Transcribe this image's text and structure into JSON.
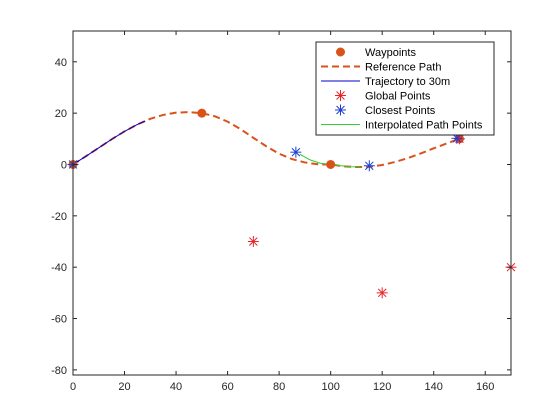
{
  "chart_data": {
    "type": "line",
    "title": "",
    "xlabel": "",
    "ylabel": "",
    "xlim": [
      0,
      170
    ],
    "ylim": [
      -82,
      52
    ],
    "xticks": [
      0,
      20,
      40,
      60,
      80,
      100,
      120,
      140,
      160
    ],
    "yticks": [
      -80,
      -60,
      -40,
      -20,
      0,
      20,
      40
    ],
    "grid": false,
    "legend_position": "top-right",
    "series": [
      {
        "name": "Waypoints",
        "kind": "markers",
        "marker": "filled-circle",
        "color": "#D95319",
        "x": [
          0,
          50,
          100,
          150
        ],
        "y": [
          0,
          20,
          0,
          10
        ]
      },
      {
        "name": "Reference Path",
        "kind": "line",
        "style": "dashed",
        "color": "#D95319",
        "x": [
          0,
          5,
          10,
          15,
          20,
          25,
          30,
          35,
          40,
          45,
          50,
          55,
          60,
          65,
          70,
          75,
          80,
          85,
          90,
          95,
          100,
          105,
          110,
          115,
          120,
          125,
          130,
          135,
          140,
          145,
          150
        ],
        "y": [
          0,
          3.2,
          6.5,
          9.8,
          12.9,
          15.6,
          17.8,
          19.3,
          20.2,
          20.4,
          20.0,
          18.8,
          16.7,
          13.8,
          10.4,
          7.1,
          4.2,
          2.1,
          0.8,
          0.1,
          0.0,
          -0.7,
          -1.0,
          -0.9,
          -0.2,
          1.0,
          2.5,
          4.3,
          6.3,
          8.2,
          10.0
        ]
      },
      {
        "name": "Trajectory to 30m",
        "kind": "line",
        "style": "solid",
        "color": "#0000CC",
        "x": [
          0,
          5,
          10,
          15,
          20,
          25,
          28
        ],
        "y": [
          0,
          3.2,
          6.5,
          9.8,
          12.9,
          15.6,
          16.9
        ]
      },
      {
        "name": "Global Points",
        "kind": "markers",
        "marker": "asterisk",
        "color": "#E8262A",
        "x": [
          70,
          120,
          150,
          170
        ],
        "y": [
          -30,
          -50,
          10,
          -40
        ]
      },
      {
        "name": "Closest Points",
        "kind": "markers",
        "marker": "asterisk",
        "color": "#1F3FD1",
        "x": [
          86.5,
          115,
          149,
          0
        ],
        "y": [
          4.8,
          -0.5,
          10.2,
          0
        ]
      },
      {
        "name": "Interpolated Path Points",
        "kind": "line",
        "style": "solid",
        "color": "#33CC33",
        "x": [
          88,
          92,
          96,
          100,
          104,
          108,
          112
        ],
        "y": [
          4.0,
          1.8,
          0.5,
          0.0,
          -0.5,
          -0.9,
          -1.0
        ]
      }
    ]
  }
}
